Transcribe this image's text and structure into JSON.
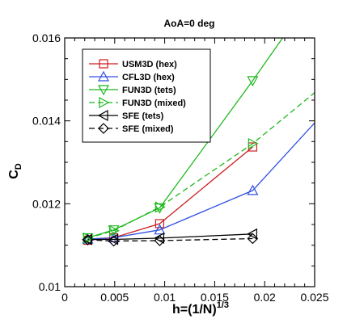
{
  "chart_data": {
    "type": "line",
    "title": "AoA=0 deg",
    "xlabel": {
      "main": "h=(1/N)",
      "sup": "1/3"
    },
    "ylabel": {
      "main": "C",
      "sub": "D"
    },
    "xlim": [
      0,
      0.025
    ],
    "ylim": [
      0.01,
      0.016
    ],
    "xticks": [
      "0",
      "0.005",
      "0.01",
      "0.015",
      "0.02",
      "0.025"
    ],
    "xtick_values": [
      0,
      0.005,
      0.01,
      0.015,
      0.02,
      0.025
    ],
    "yticks": [
      "0.01",
      "0.012",
      "0.014",
      "0.016"
    ],
    "ytick_values": [
      0.01,
      0.012,
      0.014,
      0.016
    ],
    "grid": false,
    "legend_position": "top-left",
    "series": [
      {
        "name": "USM3D (hex)",
        "color": "#cc1f1f",
        "dash": "solid",
        "marker": "square",
        "x": [
          0.0023,
          0.0049,
          0.0095,
          0.0188
        ],
        "y": [
          0.01112,
          0.01118,
          0.01152,
          0.01337
        ],
        "line_x": [
          0.0023,
          0.0049,
          0.0095,
          0.0188
        ],
        "line_y": [
          0.01112,
          0.01118,
          0.01152,
          0.01337
        ]
      },
      {
        "name": "CFL3D (hex)",
        "color": "#3050e0",
        "dash": "solid",
        "marker": "triangle-up",
        "x": [
          0.0023,
          0.0049,
          0.0095,
          0.0188
        ],
        "y": [
          0.01115,
          0.01118,
          0.01137,
          0.01232
        ],
        "line_x": [
          0.0023,
          0.0049,
          0.0095,
          0.0188,
          0.025
        ],
        "line_y": [
          0.01115,
          0.01118,
          0.01137,
          0.01232,
          0.01395
        ]
      },
      {
        "name": "FUN3D (tets)",
        "color": "#1fb81f",
        "dash": "solid",
        "marker": "triangle-down",
        "x": [
          0.0023,
          0.0049,
          0.0095,
          0.0188
        ],
        "y": [
          0.01118,
          0.01137,
          0.0119,
          0.01497
        ],
        "line_x": [
          0.0023,
          0.0049,
          0.0095,
          0.0188,
          0.0218
        ],
        "line_y": [
          0.01118,
          0.01137,
          0.0119,
          0.01497,
          0.016
        ]
      },
      {
        "name": "FUN3D (mixed)",
        "color": "#1fb81f",
        "dash": "dashed",
        "marker": "triangle-right",
        "x": [
          0.0023,
          0.0049,
          0.0095,
          0.0188
        ],
        "y": [
          0.01117,
          0.01135,
          0.01192,
          0.01345
        ],
        "line_x": [
          0.0023,
          0.0049,
          0.0095,
          0.0188,
          0.025
        ],
        "line_y": [
          0.01117,
          0.01135,
          0.01192,
          0.01345,
          0.01468
        ]
      },
      {
        "name": "SFE (tets)",
        "color": "#000000",
        "dash": "solid",
        "marker": "triangle-left",
        "x": [
          0.0023,
          0.0049,
          0.0095,
          0.0188
        ],
        "y": [
          0.01114,
          0.01114,
          0.01117,
          0.01127
        ],
        "line_x": [
          0.0023,
          0.0049,
          0.0095,
          0.0188
        ],
        "line_y": [
          0.01114,
          0.01114,
          0.01117,
          0.01127
        ]
      },
      {
        "name": "SFE (mixed)",
        "color": "#000000",
        "dash": "dashed",
        "marker": "diamond",
        "x": [
          0.0023,
          0.0049,
          0.0095,
          0.0188
        ],
        "y": [
          0.01113,
          0.0111,
          0.01111,
          0.01116
        ],
        "line_x": [
          0.0023,
          0.0049,
          0.0095,
          0.0188
        ],
        "line_y": [
          0.01113,
          0.0111,
          0.01111,
          0.01116
        ]
      }
    ]
  }
}
